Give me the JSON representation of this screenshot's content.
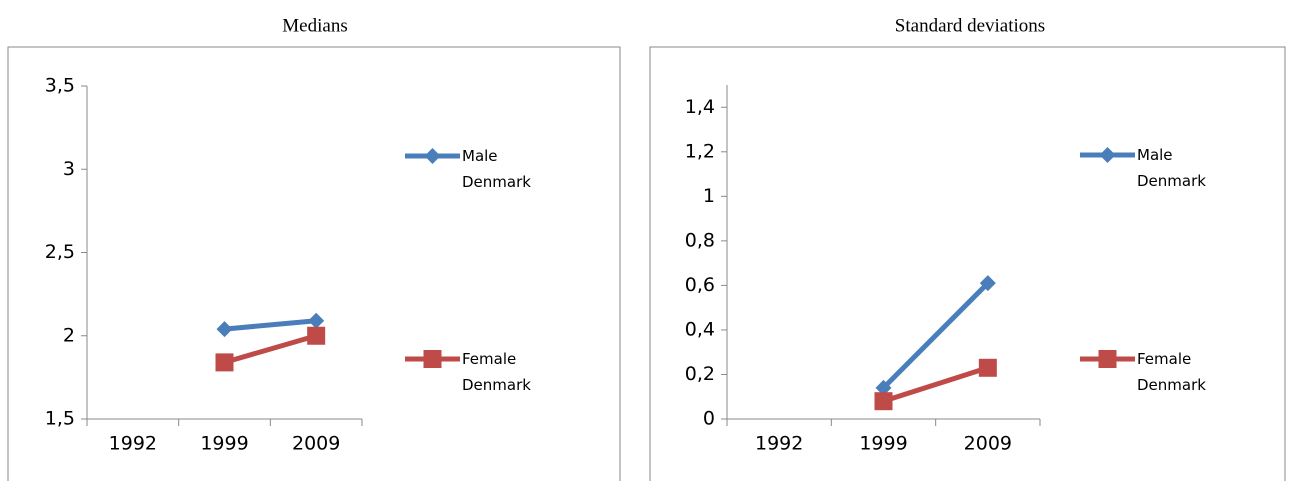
{
  "chart_data": [
    {
      "type": "line",
      "title": "Medians",
      "categories": [
        "1992",
        "1999",
        "2009"
      ],
      "series": [
        {
          "name": "Male Denmark",
          "color": "#4a7ebb",
          "marker": "diamond",
          "values": [
            null,
            2.04,
            2.09
          ]
        },
        {
          "name": "Female Denmark",
          "color": "#be4b48",
          "marker": "square",
          "values": [
            null,
            1.84,
            2.0
          ]
        }
      ],
      "ylim": [
        1.5,
        3.5
      ],
      "yticks": [
        {
          "value": 1.5,
          "label": "1,5"
        },
        2,
        {
          "value": 2.5,
          "label": "2,5"
        },
        3,
        {
          "value": 3.5,
          "label": "3,5"
        }
      ],
      "legend": "right"
    },
    {
      "type": "line",
      "title": "Standard deviations",
      "categories": [
        "1992",
        "1999",
        "2009"
      ],
      "series": [
        {
          "name": "Male Denmark",
          "color": "#4a7ebb",
          "marker": "diamond",
          "values": [
            null,
            0.14,
            0.61
          ]
        },
        {
          "name": "Female Denmark",
          "color": "#be4b48",
          "marker": "square",
          "values": [
            null,
            0.08,
            0.23
          ]
        }
      ],
      "ylim": [
        0,
        1.5
      ],
      "yticks": [
        0,
        {
          "value": 0.2,
          "label": "0,2"
        },
        {
          "value": 0.4,
          "label": "0,4"
        },
        {
          "value": 0.6,
          "label": "0,6"
        },
        {
          "value": 0.8,
          "label": "0,8"
        },
        1,
        {
          "value": 1.2,
          "label": "1,2"
        },
        {
          "value": 1.4,
          "label": "1,4"
        }
      ],
      "legend": "right"
    }
  ]
}
